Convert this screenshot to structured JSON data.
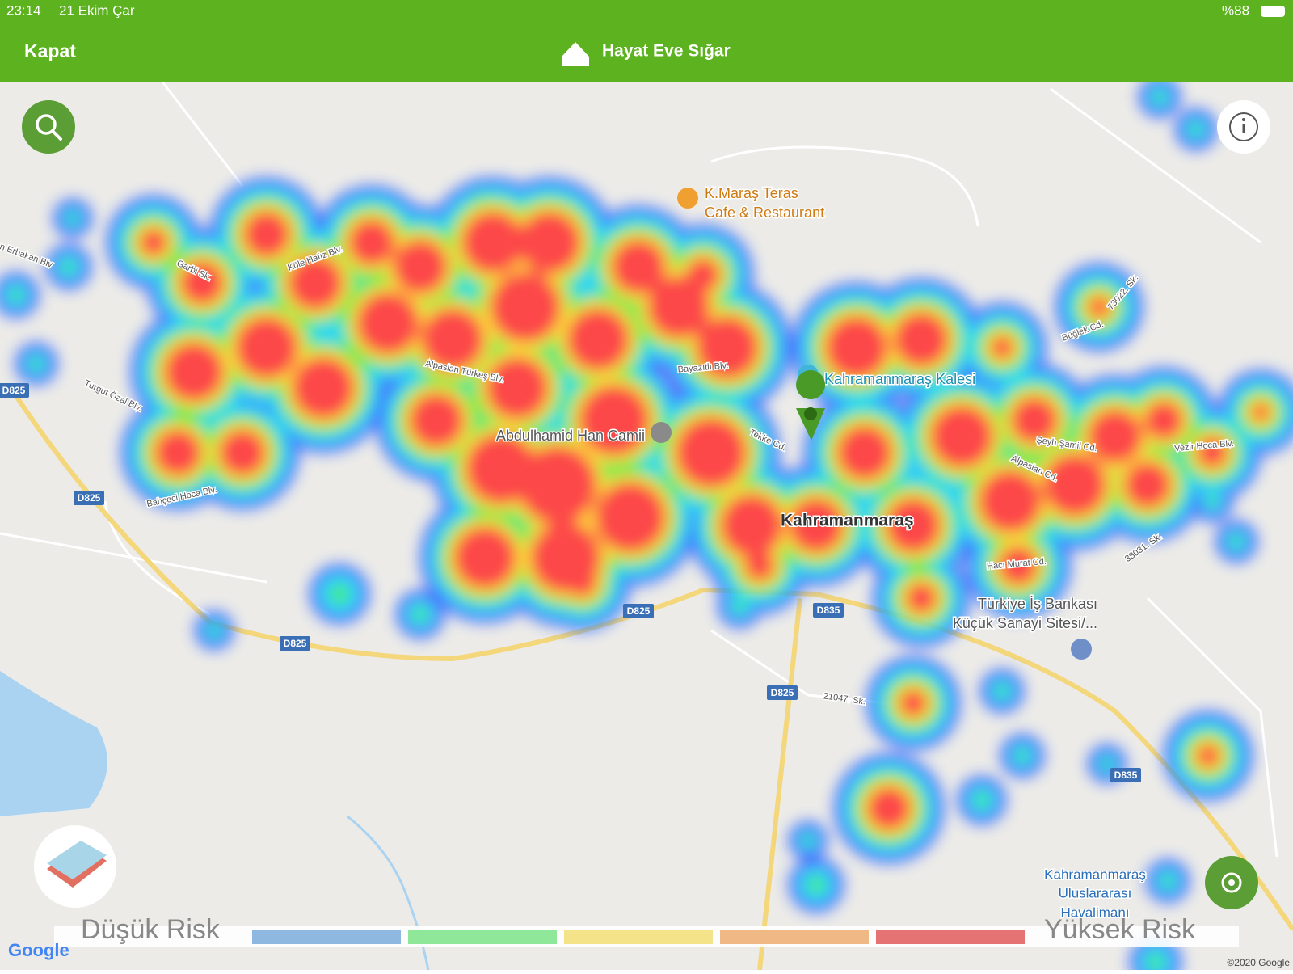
{
  "status_bar": {
    "time": "23:14",
    "date": "21 Ekim Çar",
    "battery": "%88"
  },
  "header": {
    "close": "Kapat",
    "title": "Hayat Eve Sığar"
  },
  "map": {
    "places": [
      "K.Maraş Teras",
      "Cafe & Restaurant",
      "Kahramanmaraş Kalesi",
      "Abdulhamid Han Camii",
      "Kahramanmaraş",
      "Türkiye İş Bankası",
      "Küçük Sanayi Sitesi/...",
      "Kahramanmaraş",
      "Uluslararası",
      "Havalimanı"
    ],
    "streets": [
      "n Erbakan Blv",
      "Garbi Sk.",
      "Köle Hafız Blv.",
      "Turgut Özal Blv.",
      "Alpaslan Türkeş Blv.",
      "Bayazıtlı Blv.",
      "Tekke Cd.",
      "Bahçeci Hoca Blv.",
      "Büğlek Cd.",
      "73022. Sk.",
      "Şeyh Şamil Cd.",
      "Alpaslan Cd.",
      "Vezir Hoca Blv.",
      "38031. Sk.",
      "Hacı Murat Cd.",
      "21047. Sk."
    ],
    "road_shields": [
      "D825",
      "D825",
      "D825",
      "D825",
      "D835",
      "D825",
      "D835"
    ],
    "attribution": "©2020 Google",
    "logo": "Google"
  },
  "legend": {
    "low": "Düşük Risk",
    "high": "Yüksek Risk"
  }
}
